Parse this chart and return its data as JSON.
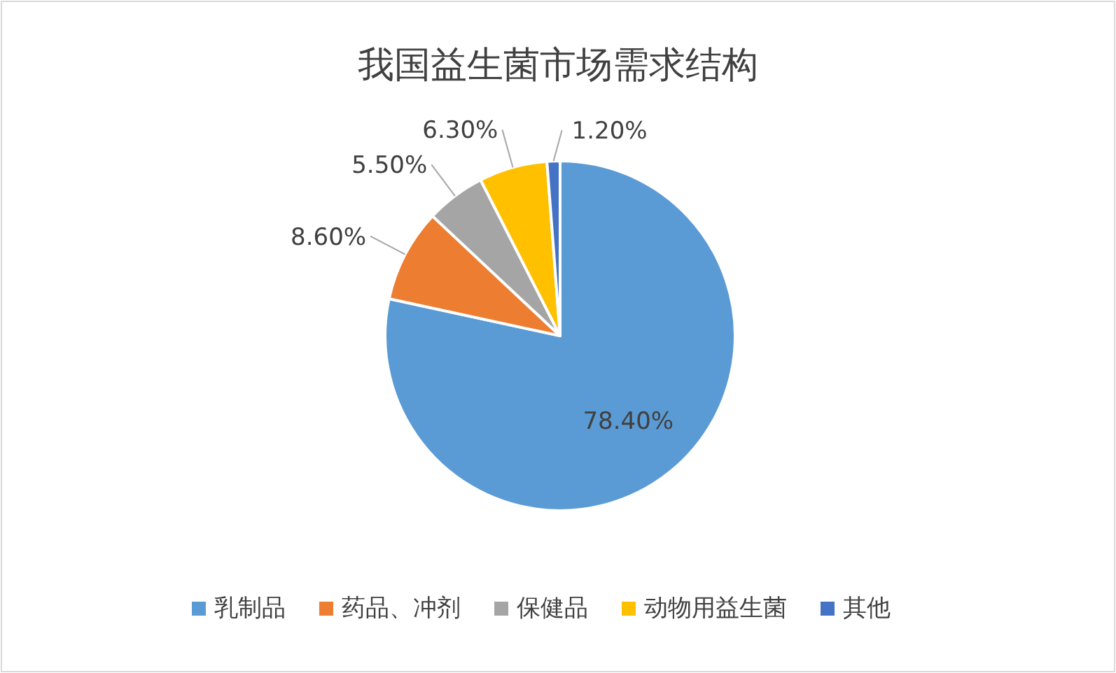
{
  "chart_data": {
    "type": "pie",
    "title": "我国益生菌市场需求结构",
    "categories": [
      "乳制品",
      "药品、冲剂",
      "保健品",
      "动物用益生菌",
      "其他"
    ],
    "values": [
      78.4,
      8.6,
      5.5,
      6.3,
      1.2
    ],
    "colors": [
      "#5b9bd5",
      "#ed7d31",
      "#a5a5a5",
      "#ffc000",
      "#4472c4"
    ],
    "value_labels": [
      "78.40%",
      "8.60%",
      "5.50%",
      "6.30%",
      "1.20%"
    ],
    "legend": "bottom"
  }
}
